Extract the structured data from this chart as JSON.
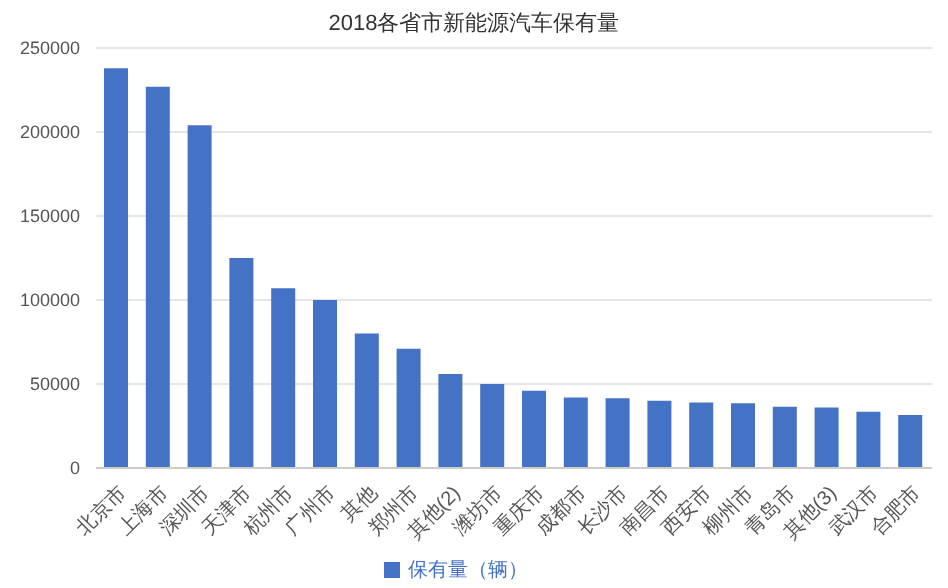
{
  "chart_data": {
    "type": "bar",
    "title": "2018各省市新能源汽车保有量",
    "categories": [
      "北京市",
      "上海市",
      "深圳市",
      "天津市",
      "杭州市",
      "广州市",
      "其他",
      "郑州市",
      "其他(2)",
      "潍坊市",
      "重庆市",
      "成都市",
      "长沙市",
      "南昌市",
      "西安市",
      "柳州市",
      "青岛市",
      "其他(3)",
      "武汉市",
      "合肥市"
    ],
    "series": [
      {
        "name": "保有量（辆）",
        "color": "#4472c4",
        "values": [
          238000,
          227000,
          204000,
          125000,
          107000,
          100000,
          80000,
          71000,
          56000,
          50000,
          46000,
          42000,
          41500,
          40000,
          39000,
          38500,
          36500,
          36000,
          33500,
          31500
        ]
      }
    ],
    "ylim": [
      0,
      250000
    ],
    "yticks": [
      0,
      50000,
      100000,
      150000,
      200000,
      250000
    ],
    "grid": "y",
    "legend": "bottom"
  }
}
